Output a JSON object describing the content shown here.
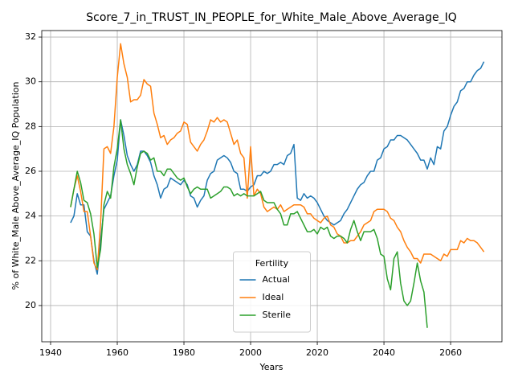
{
  "chart_data": {
    "type": "line",
    "title": "Score_7_in_TRUST_IN_PEOPLE_for_White_Male_Above_Average_IQ",
    "x_label": "Years",
    "y_label": "% of White_Male Above_Average_IQ Population",
    "x": [
      1946,
      1947,
      1948,
      1949,
      1950,
      1951,
      1952,
      1953,
      1954,
      1955,
      1956,
      1957,
      1958,
      1959,
      1960,
      1961,
      1962,
      1963,
      1964,
      1965,
      1966,
      1967,
      1968,
      1969,
      1970,
      1971,
      1972,
      1973,
      1974,
      1975,
      1976,
      1977,
      1978,
      1979,
      1980,
      1981,
      1982,
      1983,
      1984,
      1985,
      1986,
      1987,
      1988,
      1989,
      1990,
      1991,
      1992,
      1993,
      1994,
      1995,
      1996,
      1997,
      1998,
      1999,
      2000,
      2001,
      2002,
      2003,
      2004,
      2005,
      2006,
      2007,
      2008,
      2009,
      2010,
      2011,
      2012,
      2013,
      2014,
      2015,
      2016,
      2017,
      2018,
      2019,
      2020,
      2021,
      2022,
      2023,
      2024,
      2025,
      2026,
      2027,
      2028,
      2029,
      2030,
      2031,
      2032,
      2033,
      2034,
      2035,
      2036,
      2037,
      2038,
      2039,
      2040,
      2041,
      2042,
      2043,
      2044,
      2045,
      2046,
      2047,
      2048,
      2049,
      2050,
      2051,
      2052,
      2053,
      2054,
      2055,
      2056,
      2057,
      2058,
      2059,
      2060,
      2061,
      2062,
      2063,
      2064,
      2065,
      2066,
      2067,
      2068,
      2069,
      2070
    ],
    "series": [
      {
        "name": "Actual",
        "color": "#1f77b4",
        "values": [
          23.7,
          24.0,
          25.0,
          24.5,
          24.5,
          23.3,
          23.1,
          22.0,
          21.4,
          22.9,
          24.3,
          24.6,
          24.9,
          25.8,
          26.5,
          28.3,
          27.6,
          26.7,
          26.3,
          26.0,
          26.3,
          26.9,
          26.9,
          26.7,
          26.4,
          25.8,
          25.4,
          24.8,
          25.2,
          25.3,
          25.7,
          25.6,
          25.5,
          25.4,
          25.6,
          25.4,
          24.9,
          24.8,
          24.4,
          24.7,
          24.9,
          25.6,
          25.9,
          26.0,
          26.5,
          26.6,
          26.7,
          26.6,
          26.4,
          26.0,
          25.9,
          25.2,
          25.2,
          25.1,
          25.3,
          25.4,
          25.8,
          25.8,
          26.0,
          25.9,
          26.0,
          26.3,
          26.3,
          26.4,
          26.3,
          26.7,
          26.8,
          27.2,
          24.8,
          24.7,
          25.0,
          24.8,
          24.9,
          24.8,
          24.6,
          24.3,
          24.0,
          23.8,
          23.7,
          23.6,
          23.7,
          23.8,
          24.1,
          24.3,
          24.6,
          24.9,
          25.2,
          25.4,
          25.5,
          25.8,
          26.0,
          26.0,
          26.5,
          26.6,
          27.0,
          27.1,
          27.4,
          27.4,
          27.6,
          27.6,
          27.5,
          27.4,
          27.2,
          27.0,
          26.8,
          26.5,
          26.5,
          26.1,
          26.6,
          26.3,
          27.1,
          27.0,
          27.8,
          28.0,
          28.5,
          28.9,
          29.1,
          29.6,
          29.7,
          30.0,
          30.0,
          30.3,
          30.5,
          30.6,
          30.9
        ]
      },
      {
        "name": "Ideal",
        "color": "#ff7f0e",
        "values": [
          24.4,
          25.2,
          25.8,
          25.1,
          24.2,
          24.2,
          23.1,
          21.9,
          21.6,
          23.7,
          27.0,
          27.1,
          26.8,
          28.0,
          30.2,
          31.7,
          30.8,
          30.2,
          29.1,
          29.2,
          29.2,
          29.4,
          30.1,
          29.9,
          29.8,
          28.6,
          28.1,
          27.5,
          27.6,
          27.2,
          27.4,
          27.5,
          27.7,
          27.8,
          28.2,
          28.1,
          27.3,
          27.1,
          26.9,
          27.2,
          27.4,
          27.8,
          28.3,
          28.2,
          28.4,
          28.2,
          28.3,
          28.2,
          27.7,
          27.2,
          27.4,
          26.8,
          26.6,
          24.8,
          27.1,
          24.9,
          25.2,
          25.0,
          24.4,
          24.2,
          24.3,
          24.4,
          24.3,
          24.5,
          24.2,
          24.3,
          24.4,
          24.5,
          24.5,
          24.5,
          24.4,
          24.1,
          24.1,
          23.9,
          23.8,
          23.7,
          23.9,
          24.0,
          23.6,
          23.5,
          23.2,
          23.1,
          22.8,
          22.8,
          22.9,
          22.9,
          23.1,
          23.3,
          23.6,
          23.7,
          23.8,
          24.2,
          24.3,
          24.3,
          24.3,
          24.2,
          23.9,
          23.8,
          23.5,
          23.3,
          22.9,
          22.6,
          22.4,
          22.1,
          22.1,
          21.9,
          22.3,
          22.3,
          22.3,
          22.2,
          22.1,
          22.0,
          22.3,
          22.2,
          22.5,
          22.5,
          22.5,
          22.9,
          22.8,
          23.0,
          22.9,
          22.9,
          22.8,
          22.6,
          22.4
        ]
      },
      {
        "name": "Sterile",
        "color": "#2ca02c",
        "values": [
          24.4,
          25.2,
          26.0,
          25.5,
          24.7,
          24.6,
          24.1,
          23.2,
          21.7,
          22.5,
          24.5,
          25.1,
          24.8,
          26.2,
          27.0,
          28.3,
          27.0,
          26.3,
          25.9,
          25.4,
          26.2,
          26.8,
          26.9,
          26.8,
          26.5,
          26.6,
          26.0,
          26.0,
          25.8,
          26.1,
          26.1,
          25.9,
          25.7,
          25.6,
          25.7,
          25.3,
          25.0,
          25.2,
          25.3,
          25.2,
          25.2,
          25.2,
          24.8,
          24.9,
          25.0,
          25.1,
          25.3,
          25.3,
          25.2,
          24.9,
          25.0,
          24.9,
          25.0,
          24.9,
          24.9,
          24.9,
          25.0,
          25.1,
          24.7,
          24.6,
          24.6,
          24.6,
          24.3,
          24.1,
          23.6,
          23.6,
          24.1,
          24.1,
          24.2,
          23.9,
          23.6,
          23.3,
          23.3,
          23.4,
          23.2,
          23.5,
          23.4,
          23.5,
          23.1,
          23.0,
          23.1,
          23.1,
          23.0,
          22.8,
          23.4,
          23.8,
          23.3,
          22.9,
          23.3,
          23.3,
          23.3,
          23.4,
          23.0,
          22.3,
          22.2,
          21.2,
          20.7,
          22.1,
          22.4,
          21.0,
          20.2,
          20.0,
          20.2,
          21.0,
          21.9,
          21.1,
          20.6,
          19.0,
          null,
          null,
          null,
          null,
          null,
          null,
          null,
          null,
          null,
          null,
          null,
          null,
          null,
          null,
          null,
          null,
          null
        ]
      }
    ],
    "xlim": [
      1937.35,
      2075.4
    ],
    "xticks": [
      1940,
      1960,
      1980,
      2000,
      2020,
      2040,
      2060
    ],
    "ylim": [
      18.38,
      32.29
    ],
    "yticks": [
      20,
      22,
      24,
      26,
      28,
      30,
      32
    ],
    "grid": true,
    "legend_title": "Fertility",
    "legend_position": "lower center"
  }
}
